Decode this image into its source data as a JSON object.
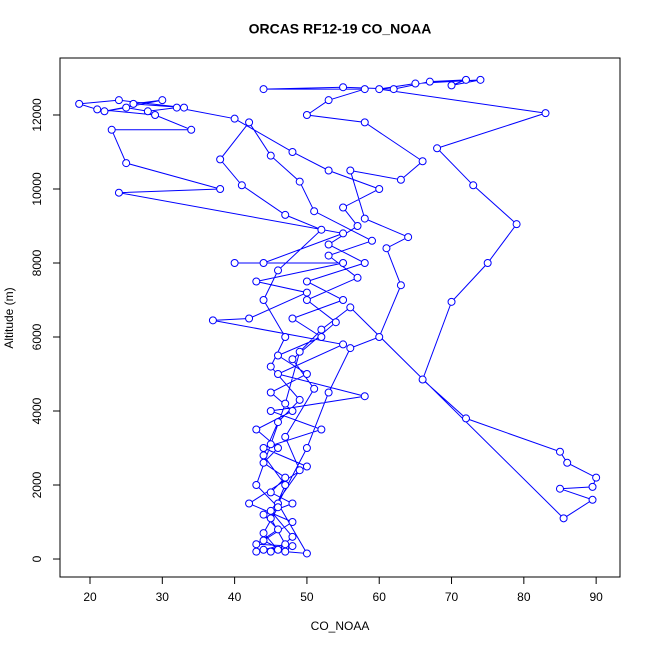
{
  "chart_data": {
    "type": "line",
    "title": "ORCAS RF12-19 CO_NOAA",
    "x_label": "CO_NOAA",
    "y_label": "Altitude (m)",
    "color": "#0000ff",
    "markers": true,
    "xlim": [
      15.85,
      93.3
    ],
    "ylim": [
      -486,
      13540
    ],
    "xticks": [
      20,
      30,
      40,
      50,
      60,
      70,
      80,
      90
    ],
    "yticks": [
      0,
      2000,
      4000,
      6000,
      8000,
      10000,
      12000
    ],
    "x": [
      45,
      47,
      44,
      48,
      43,
      46,
      44,
      48,
      45,
      47,
      44,
      46,
      43,
      48,
      45,
      50,
      46,
      52,
      48,
      55,
      50,
      58,
      53,
      57,
      55,
      60,
      53,
      48,
      40,
      32,
      28,
      25,
      22,
      30,
      26,
      33,
      24,
      18.5,
      21,
      29,
      34,
      23,
      25,
      38,
      24,
      55,
      44,
      40,
      55,
      43,
      50,
      42,
      37,
      55,
      46,
      58,
      45,
      52,
      44,
      50,
      42,
      48,
      44,
      47,
      50,
      46,
      50,
      53,
      56,
      60,
      63,
      61,
      64,
      58,
      56,
      63,
      66,
      58,
      50,
      53,
      58,
      44,
      55,
      62,
      67,
      72,
      70,
      74,
      65,
      60,
      83,
      68,
      73,
      79,
      75,
      70,
      66,
      72,
      85,
      86,
      90,
      89.5,
      85,
      89.5,
      85.5,
      56,
      52,
      49,
      47,
      45,
      43,
      46,
      44,
      46,
      48,
      45,
      49,
      47,
      51,
      48,
      54,
      50,
      57,
      53,
      59,
      51,
      49,
      45,
      42,
      38,
      41,
      47,
      52,
      46,
      44,
      47,
      45,
      49,
      46,
      44,
      47,
      45,
      47,
      43
    ],
    "values": [
      200,
      300,
      250,
      350,
      400,
      800,
      1200,
      1500,
      1800,
      2200,
      2600,
      3000,
      3500,
      4000,
      4500,
      5000,
      5500,
      6000,
      6500,
      7000,
      7500,
      8000,
      8500,
      9000,
      9500,
      10000,
      10500,
      11000,
      11900,
      12200,
      12100,
      12200,
      12100,
      12400,
      12300,
      12200,
      12400,
      12300,
      12150,
      12000,
      11600,
      11600,
      10700,
      10000,
      9900,
      8800,
      8000,
      8000,
      8000,
      7500,
      7200,
      6500,
      6450,
      5800,
      5000,
      4400,
      4000,
      3500,
      3000,
      2500,
      1500,
      1000,
      500,
      200,
      150,
      1500,
      3000,
      4500,
      5700,
      6000,
      7400,
      8400,
      8700,
      9200,
      10500,
      10250,
      10750,
      11800,
      12000,
      12400,
      12700,
      12700,
      12750,
      12700,
      12900,
      12950,
      12800,
      12950,
      12850,
      12700,
      12050,
      11100,
      10100,
      9050,
      8000,
      6950,
      4850,
      3800,
      2900,
      2600,
      2200,
      1950,
      1900,
      1600,
      1100,
      6800,
      6200,
      5600,
      4200,
      3100,
      2000,
      1400,
      700,
      250,
      600,
      1300,
      2400,
      3300,
      4600,
      5400,
      6400,
      7000,
      7600,
      8200,
      8600,
      9400,
      10200,
      10900,
      11800,
      10800,
      10100,
      9300,
      8900,
      7800,
      7000,
      6000,
      5200,
      4300,
      3700,
      2800,
      2000,
      1100,
      400,
      200
    ]
  }
}
